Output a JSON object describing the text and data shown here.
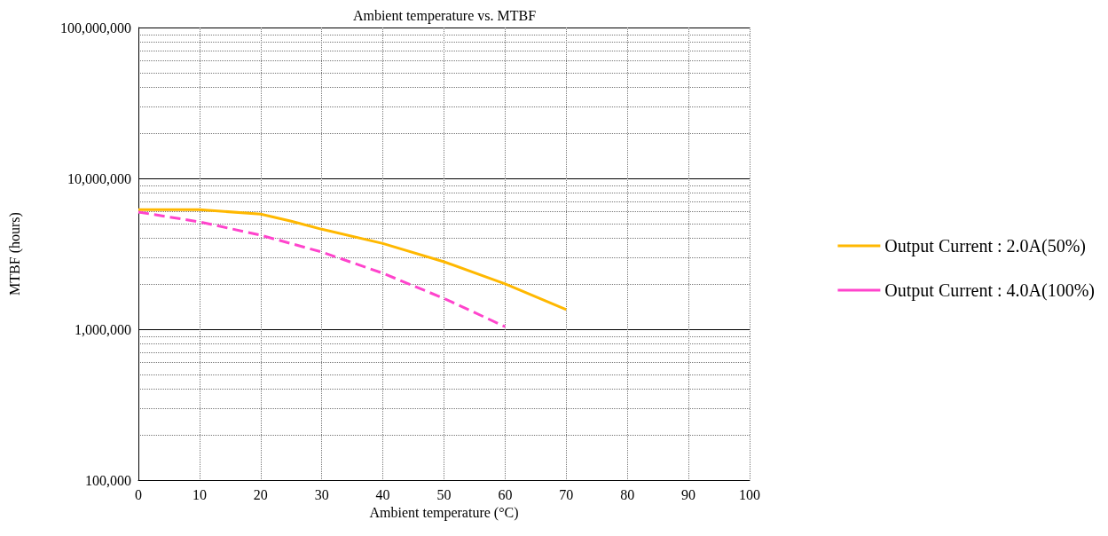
{
  "chart_data": {
    "type": "line",
    "title": "Ambient temperature vs. MTBF",
    "xlabel": "Ambient temperature (°C)",
    "ylabel": "MTBF (hours)",
    "x": [
      0,
      10,
      20,
      25,
      30,
      40,
      50,
      60,
      70
    ],
    "series": [
      {
        "name": "Output Current : 2.0A(50%)",
        "color": "#ffb800",
        "line_style": "solid",
        "values": [
          6200000,
          6200000,
          5800000,
          5200000,
          4600000,
          3700000,
          2800000,
          2000000,
          1350000
        ]
      },
      {
        "name": "Output Current : 4.0A(100%)",
        "color": "#ff44cc",
        "line_style": "dashed",
        "x": [
          0,
          10,
          20,
          30,
          40,
          50,
          60
        ],
        "values": [
          5980000,
          5150000,
          4200000,
          3250000,
          2350000,
          1600000,
          1040000
        ]
      }
    ],
    "xlim": [
      0,
      100
    ],
    "xticks": [
      0,
      10,
      20,
      30,
      40,
      50,
      60,
      70,
      80,
      90,
      100
    ],
    "ylim": [
      100000,
      100000000
    ],
    "yticks": [
      {
        "value": 100000,
        "label": "100,000"
      },
      {
        "value": 1000000,
        "label": "1,000,000"
      },
      {
        "value": 10000000,
        "label": "10,000,000"
      },
      {
        "value": 100000000,
        "label": "100,000,000"
      }
    ],
    "log": "y",
    "grid": true,
    "legend": "right",
    "marker": "none"
  }
}
